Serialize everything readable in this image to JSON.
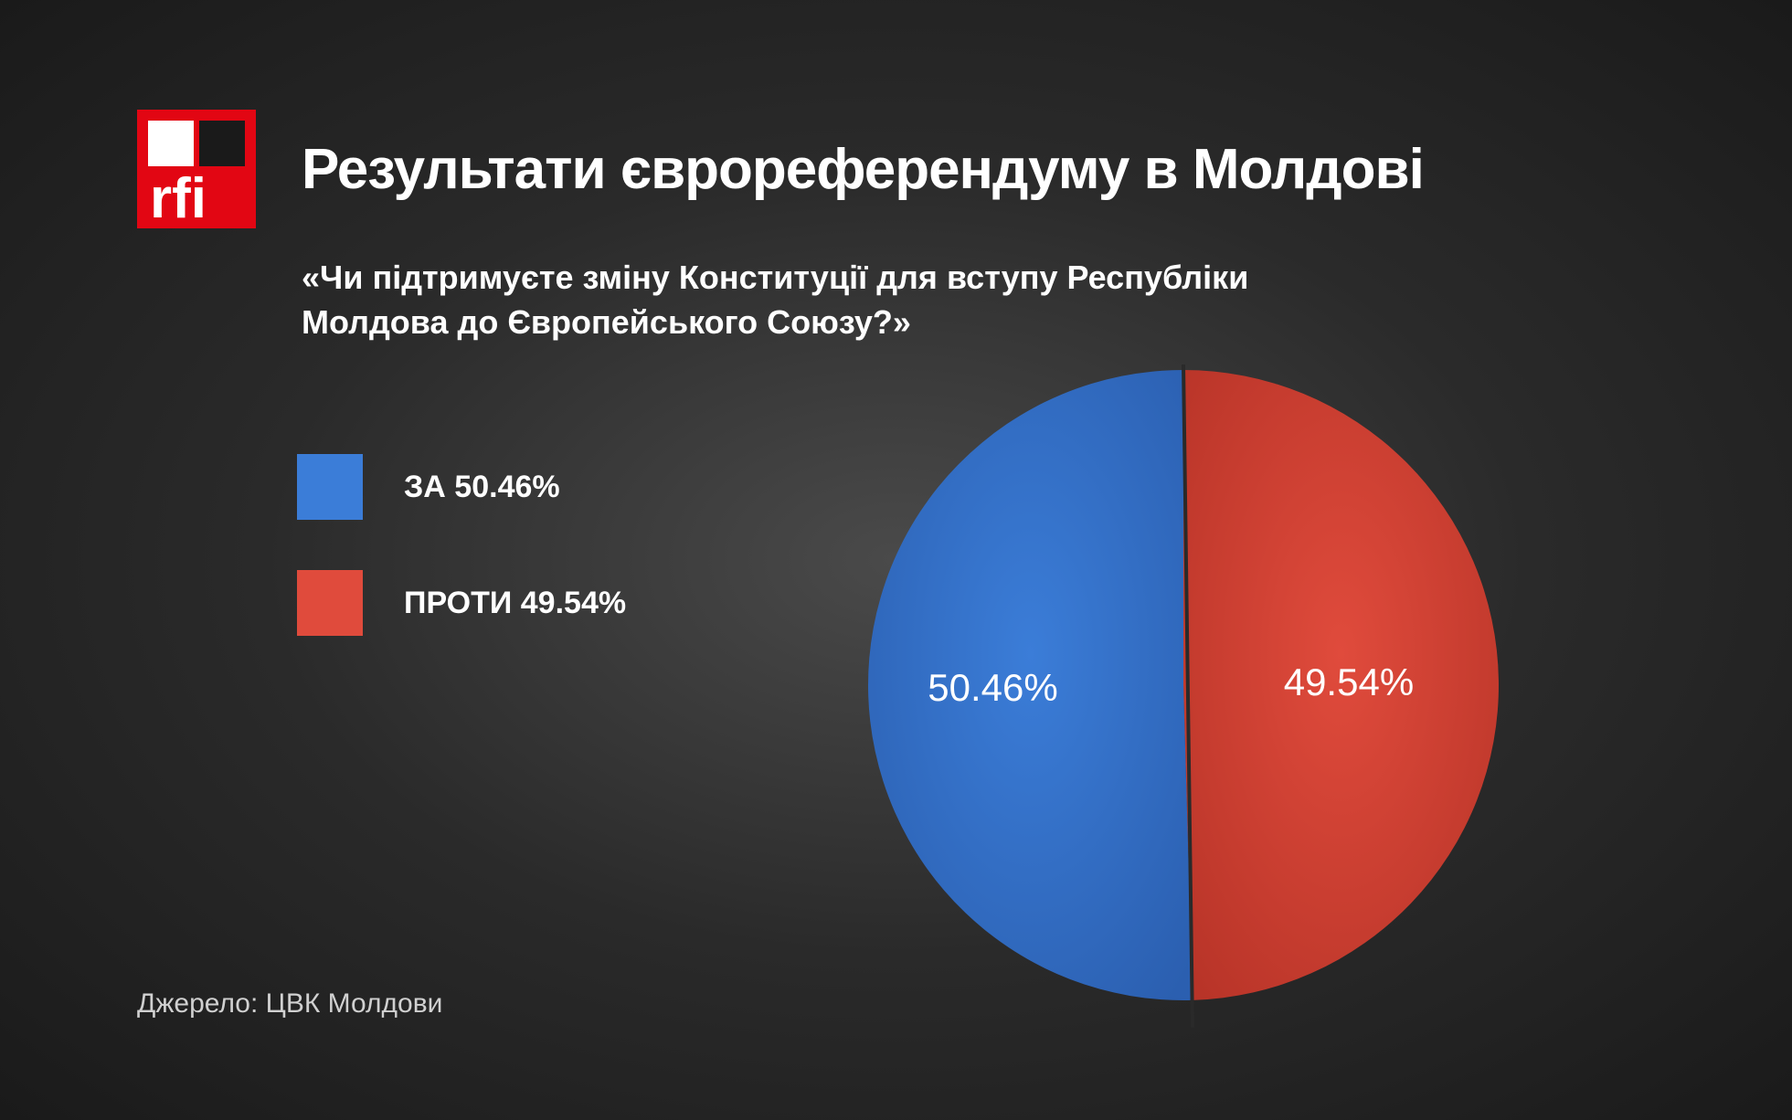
{
  "logo": {
    "brand": "rfi",
    "bg_color": "#e20613",
    "accent_color": "#ffffff",
    "accent_color2": "#1a1a1a"
  },
  "title": "Результати єврореферендуму в Молдові",
  "subtitle": "«Чи підтримуєте зміну Конституції для вступу Республіки Молдова до Європейського Союзу?»",
  "chart": {
    "type": "pie",
    "radius": 345,
    "center_divider_color": "#2a2a2a",
    "label_fontsize": 42,
    "label_color": "#ffffff",
    "slices": [
      {
        "key": "for",
        "label": "ЗА 50.46%",
        "pct_text": "50.46%",
        "value": 50.46,
        "color": "#3b7dd8",
        "color_dark": "#2b5fb0"
      },
      {
        "key": "against",
        "label": "ПРОТИ 49.54%",
        "pct_text": "49.54%",
        "value": 49.54,
        "color": "#e04b3c",
        "color_dark": "#b83428"
      }
    ]
  },
  "legend": {
    "swatch_size": 72,
    "label_fontsize": 34
  },
  "source": "Джерело: ЦВК Молдови",
  "colors": {
    "text": "#ffffff",
    "source_text": "#d0d0d0",
    "bg_center": "#4a4a4a",
    "bg_edge": "#1a1a1a"
  }
}
